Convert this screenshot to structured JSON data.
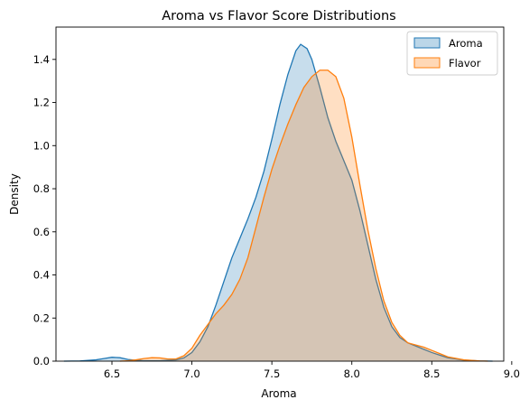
{
  "chart_data": {
    "type": "area",
    "title": "Aroma vs Flavor Score Distributions",
    "xlabel": "Aroma",
    "ylabel": "Density",
    "xlim": [
      6.15,
      8.95
    ],
    "ylim": [
      0,
      1.55
    ],
    "xticks": [
      6.5,
      7.0,
      7.5,
      8.0,
      8.5,
      9.0
    ],
    "xtick_labels": [
      "6.5",
      "7.0",
      "7.5",
      "8.0",
      "8.5",
      "9.0"
    ],
    "yticks": [
      0.0,
      0.2,
      0.4,
      0.6,
      0.8,
      1.0,
      1.2,
      1.4
    ],
    "ytick_labels": [
      "0.0",
      "0.2",
      "0.4",
      "0.6",
      "0.8",
      "1.0",
      "1.2",
      "1.4"
    ],
    "grid": false,
    "legend_position": "top-right",
    "series": [
      {
        "name": "Aroma",
        "line_color": "#1f77b4",
        "fill_color": "#1f77b4",
        "fill_opacity": 0.25,
        "points": [
          [
            6.2,
            0.0
          ],
          [
            6.3,
            0.001
          ],
          [
            6.4,
            0.006
          ],
          [
            6.45,
            0.012
          ],
          [
            6.5,
            0.018
          ],
          [
            6.55,
            0.016
          ],
          [
            6.6,
            0.008
          ],
          [
            6.65,
            0.004
          ],
          [
            6.7,
            0.002
          ],
          [
            6.8,
            0.002
          ],
          [
            6.9,
            0.006
          ],
          [
            6.95,
            0.015
          ],
          [
            7.0,
            0.04
          ],
          [
            7.05,
            0.09
          ],
          [
            7.1,
            0.16
          ],
          [
            7.15,
            0.26
          ],
          [
            7.2,
            0.37
          ],
          [
            7.25,
            0.48
          ],
          [
            7.3,
            0.57
          ],
          [
            7.35,
            0.66
          ],
          [
            7.4,
            0.76
          ],
          [
            7.45,
            0.88
          ],
          [
            7.5,
            1.03
          ],
          [
            7.55,
            1.19
          ],
          [
            7.6,
            1.33
          ],
          [
            7.65,
            1.44
          ],
          [
            7.68,
            1.47
          ],
          [
            7.72,
            1.45
          ],
          [
            7.75,
            1.4
          ],
          [
            7.8,
            1.27
          ],
          [
            7.85,
            1.13
          ],
          [
            7.9,
            1.02
          ],
          [
            7.95,
            0.93
          ],
          [
            8.0,
            0.84
          ],
          [
            8.05,
            0.7
          ],
          [
            8.1,
            0.54
          ],
          [
            8.15,
            0.38
          ],
          [
            8.2,
            0.25
          ],
          [
            8.25,
            0.16
          ],
          [
            8.3,
            0.11
          ],
          [
            8.35,
            0.085
          ],
          [
            8.4,
            0.07
          ],
          [
            8.45,
            0.055
          ],
          [
            8.5,
            0.04
          ],
          [
            8.55,
            0.028
          ],
          [
            8.6,
            0.016
          ],
          [
            8.7,
            0.005
          ],
          [
            8.8,
            0.001
          ],
          [
            8.88,
            0.0
          ]
        ]
      },
      {
        "name": "Flavor",
        "line_color": "#ff7f0e",
        "fill_color": "#ff7f0e",
        "fill_opacity": 0.25,
        "points": [
          [
            6.55,
            0.0
          ],
          [
            6.6,
            0.002
          ],
          [
            6.65,
            0.006
          ],
          [
            6.7,
            0.012
          ],
          [
            6.75,
            0.016
          ],
          [
            6.8,
            0.015
          ],
          [
            6.85,
            0.01
          ],
          [
            6.9,
            0.01
          ],
          [
            6.95,
            0.025
          ],
          [
            7.0,
            0.06
          ],
          [
            7.05,
            0.12
          ],
          [
            7.1,
            0.17
          ],
          [
            7.15,
            0.22
          ],
          [
            7.2,
            0.26
          ],
          [
            7.25,
            0.31
          ],
          [
            7.3,
            0.38
          ],
          [
            7.35,
            0.48
          ],
          [
            7.4,
            0.62
          ],
          [
            7.45,
            0.76
          ],
          [
            7.5,
            0.89
          ],
          [
            7.55,
            1.0
          ],
          [
            7.6,
            1.1
          ],
          [
            7.65,
            1.19
          ],
          [
            7.7,
            1.27
          ],
          [
            7.75,
            1.32
          ],
          [
            7.8,
            1.35
          ],
          [
            7.85,
            1.35
          ],
          [
            7.9,
            1.32
          ],
          [
            7.95,
            1.22
          ],
          [
            8.0,
            1.04
          ],
          [
            8.05,
            0.82
          ],
          [
            8.1,
            0.61
          ],
          [
            8.15,
            0.43
          ],
          [
            8.2,
            0.28
          ],
          [
            8.25,
            0.18
          ],
          [
            8.3,
            0.12
          ],
          [
            8.35,
            0.085
          ],
          [
            8.4,
            0.075
          ],
          [
            8.45,
            0.065
          ],
          [
            8.5,
            0.05
          ],
          [
            8.55,
            0.035
          ],
          [
            8.6,
            0.02
          ],
          [
            8.7,
            0.006
          ],
          [
            8.8,
            0.001
          ],
          [
            8.85,
            0.0
          ]
        ]
      }
    ]
  }
}
